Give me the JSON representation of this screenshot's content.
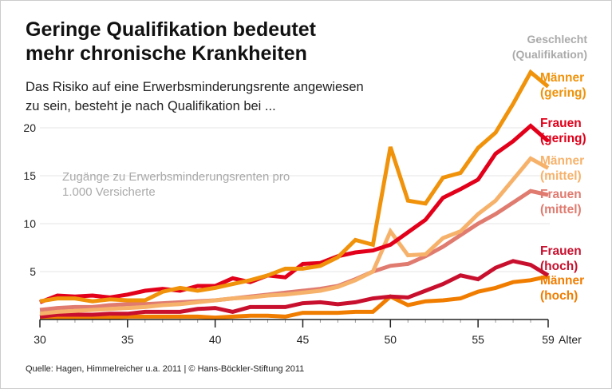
{
  "title": "Geringe Qualifikation bedeutet mehr chronische Krankheiten",
  "subtitle": "Das Risiko auf eine Erwerbsminderungsrente angewiesen zu sein, besteht je nach Qualifikation bei ...",
  "source": "Quelle: Hagen, Himmelreicher u.a. 2011 | © Hans-Böckler-Stiftung 2011",
  "chart_data": {
    "type": "line",
    "title": "Geringe Qualifikation bedeutet mehr chronische Krankheiten",
    "ylabel": "Zugänge zu Erwerbsminderungsrenten pro 1.000 Versicherte",
    "xlabel": "Alter",
    "legend_title": "Geschlecht (Qualifikation)",
    "legend_placement": "right",
    "grid": true,
    "xlim": [
      30,
      59
    ],
    "ylim": [
      0,
      25
    ],
    "x_ticks": [
      "30",
      "35",
      "40",
      "45",
      "50",
      "55",
      "59"
    ],
    "y_ticks": [
      "5",
      "10",
      "15",
      "20"
    ],
    "x": [
      30,
      31,
      32,
      33,
      34,
      35,
      36,
      37,
      38,
      39,
      40,
      41,
      42,
      43,
      44,
      45,
      46,
      47,
      48,
      49,
      50,
      51,
      52,
      53,
      54,
      55,
      56,
      57,
      58,
      59
    ],
    "series": [
      {
        "name": "Männer (gering)",
        "color": "#f0920a",
        "values": [
          1.9,
          2.2,
          2.2,
          1.9,
          2.1,
          2.0,
          2.0,
          2.9,
          3.3,
          3.0,
          3.3,
          3.7,
          4.1,
          4.6,
          5.3,
          5.3,
          5.6,
          6.5,
          8.3,
          7.8,
          18.0,
          12.4,
          12.1,
          14.8,
          15.3,
          17.9,
          19.5,
          22.5,
          25.8,
          24.3
        ]
      },
      {
        "name": "Frauen (gering)",
        "color": "#e2001a",
        "values": [
          1.8,
          2.5,
          2.4,
          2.5,
          2.3,
          2.6,
          3.0,
          3.2,
          3.0,
          3.5,
          3.5,
          4.3,
          3.9,
          4.6,
          4.4,
          5.8,
          5.9,
          6.6,
          7.0,
          7.2,
          7.8,
          9.1,
          10.4,
          12.7,
          13.6,
          14.6,
          17.3,
          18.6,
          20.2,
          18.6
        ]
      },
      {
        "name": "Männer (mittel)",
        "color": "#f6b26b",
        "values": [
          0.6,
          0.8,
          0.9,
          1.0,
          1.1,
          1.2,
          1.3,
          1.5,
          1.6,
          1.8,
          2.0,
          2.2,
          2.3,
          2.5,
          2.6,
          2.8,
          3.0,
          3.4,
          4.1,
          5.0,
          9.2,
          6.7,
          6.8,
          8.5,
          9.2,
          11.0,
          12.4,
          14.6,
          16.8,
          15.8
        ]
      },
      {
        "name": "Frauen (mittel)",
        "color": "#e07b70",
        "values": [
          1.0,
          1.2,
          1.3,
          1.3,
          1.5,
          1.6,
          1.6,
          1.7,
          1.8,
          1.9,
          2.0,
          2.2,
          2.4,
          2.6,
          2.8,
          3.0,
          3.2,
          3.5,
          4.2,
          5.0,
          5.6,
          5.8,
          6.6,
          7.6,
          8.8,
          10.0,
          11.0,
          12.2,
          13.4,
          13.0
        ]
      },
      {
        "name": "Frauen (hoch)",
        "color": "#c8102e",
        "values": [
          0.3,
          0.5,
          0.5,
          0.5,
          0.6,
          0.6,
          0.8,
          0.8,
          0.8,
          1.1,
          1.2,
          0.8,
          1.3,
          1.3,
          1.3,
          1.7,
          1.8,
          1.6,
          1.8,
          2.2,
          2.4,
          2.3,
          3.0,
          3.7,
          4.6,
          4.2,
          5.4,
          6.1,
          5.7,
          4.6
        ]
      },
      {
        "name": "Männer (hoch)",
        "color": "#f07d00",
        "values": [
          0.2,
          0.2,
          0.2,
          0.2,
          0.2,
          0.3,
          0.3,
          0.3,
          0.3,
          0.3,
          0.2,
          0.3,
          0.4,
          0.4,
          0.3,
          0.7,
          0.7,
          0.7,
          0.8,
          0.8,
          2.4,
          1.5,
          1.9,
          2.0,
          2.2,
          2.9,
          3.3,
          3.9,
          4.1,
          4.5
        ]
      }
    ]
  },
  "labels": [
    {
      "line1": "Männer",
      "line2": "(gering)"
    },
    {
      "line1": "Frauen",
      "line2": "(gering)"
    },
    {
      "line1": "Männer",
      "line2": "(mittel)"
    },
    {
      "line1": "Frauen",
      "line2": "(mittel)"
    },
    {
      "line1": "Frauen",
      "line2": "(hoch)"
    },
    {
      "line1": "Männer",
      "line2": "(hoch)"
    }
  ]
}
